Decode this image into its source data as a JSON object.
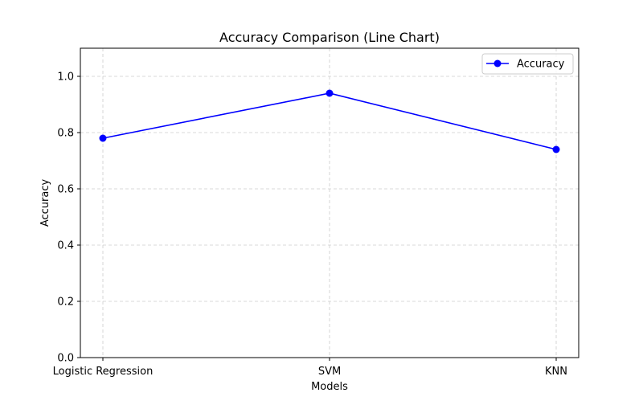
{
  "chart_data": {
    "type": "line",
    "title": "Accuracy Comparison (Line Chart)",
    "xlabel": "Models",
    "ylabel": "Accuracy",
    "categories": [
      "Logistic Regression",
      "SVM",
      "KNN"
    ],
    "series": [
      {
        "name": "Accuracy",
        "values": [
          0.78,
          0.94,
          0.74
        ],
        "color": "#0000ff",
        "marker": "circle"
      }
    ],
    "ylim": [
      0.0,
      1.1
    ],
    "yticks": [
      0.0,
      0.2,
      0.4,
      0.6,
      0.8,
      1.0
    ],
    "ytick_labels": [
      "0.0",
      "0.2",
      "0.4",
      "0.6",
      "0.8",
      "1.0"
    ],
    "grid": true,
    "grid_style": "dashed",
    "grid_color": "#cccccc",
    "legend_position": "top-right"
  }
}
